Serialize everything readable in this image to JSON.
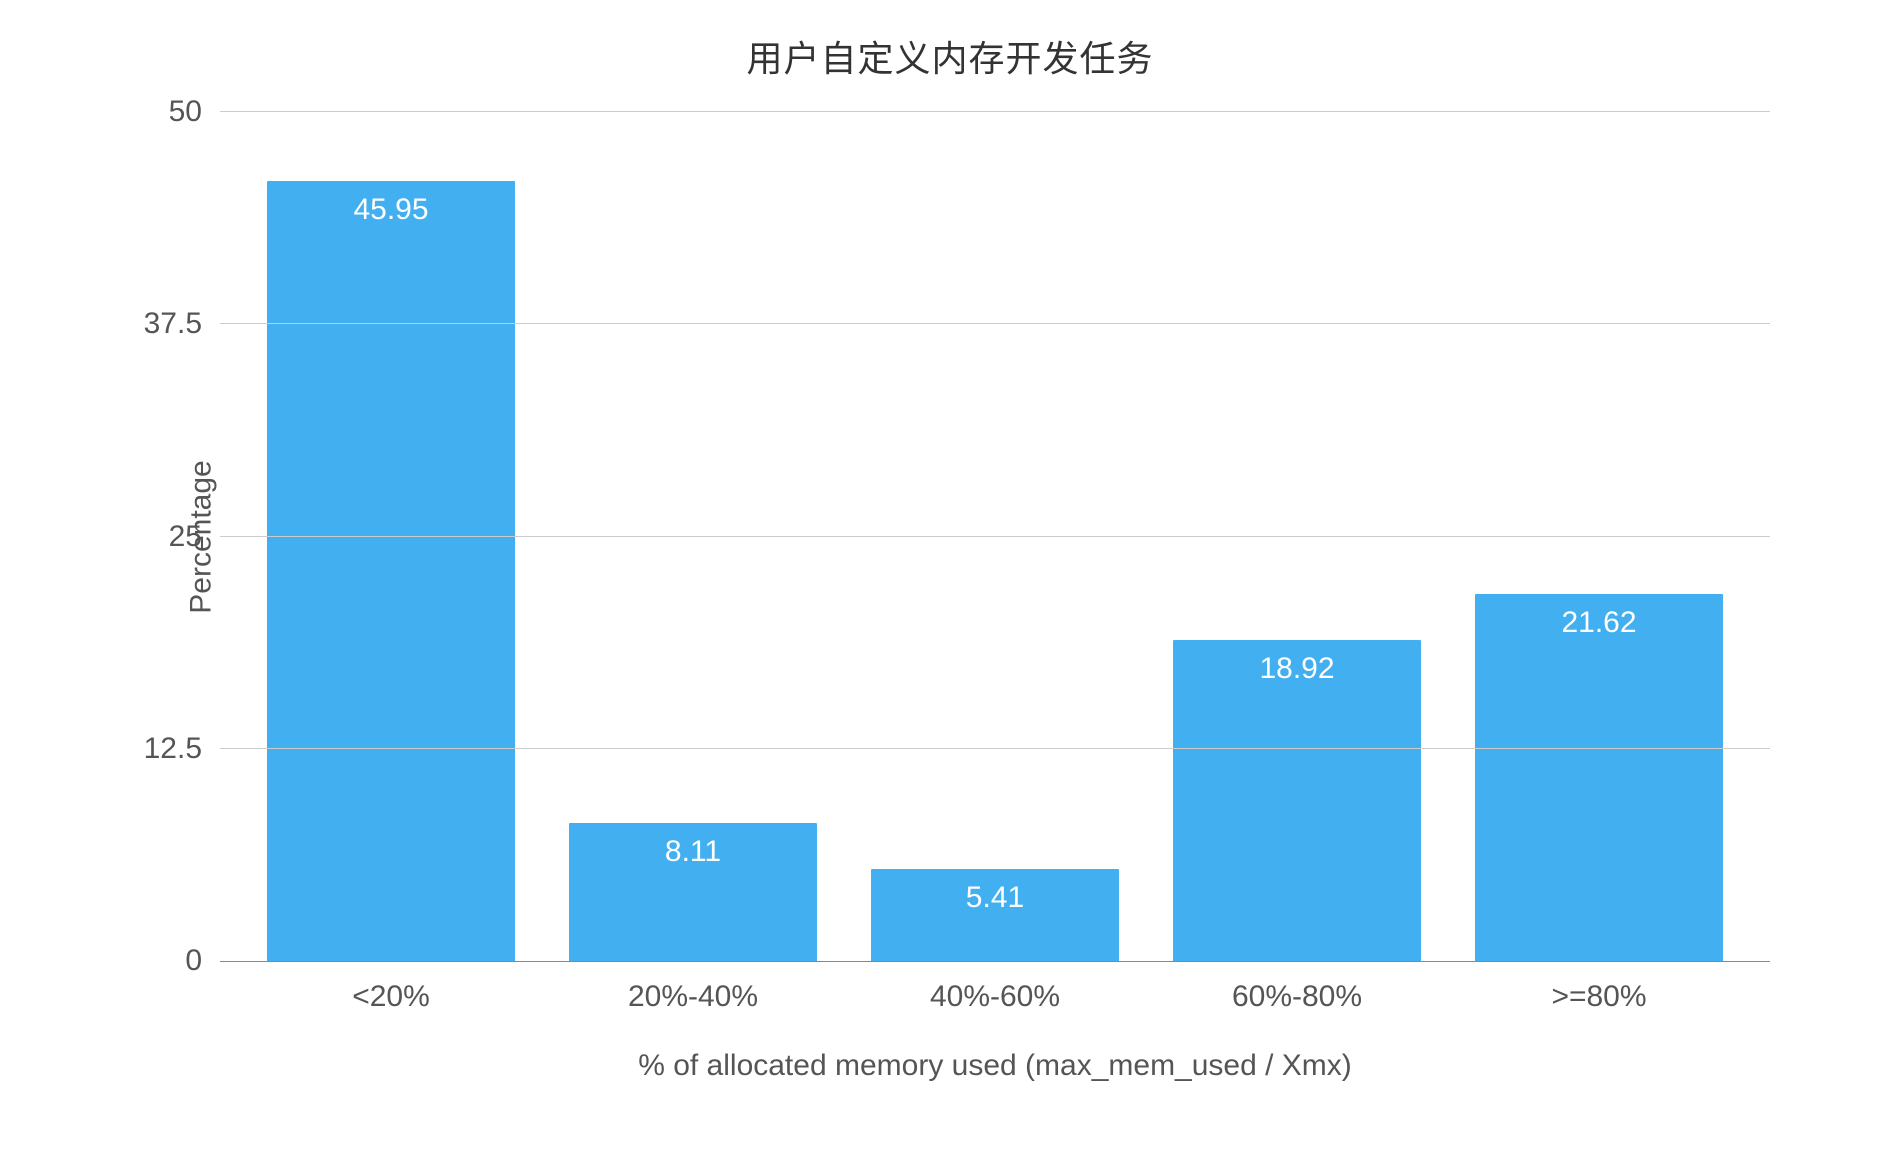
{
  "chart": {
    "type": "bar",
    "title": "用户自定义内存开发任务",
    "title_fontsize": 36,
    "title_color": "#333333",
    "xlabel": "% of allocated memory used (max_mem_used / Xmx)",
    "ylabel": "Percentage",
    "label_fontsize": 30,
    "label_color": "#555555",
    "categories": [
      "<20%",
      "20%-40%",
      "40%-60%",
      "60%-80%",
      ">=80%"
    ],
    "values": [
      45.95,
      8.11,
      5.41,
      18.92,
      21.62
    ],
    "bar_color": "#42aff0",
    "value_label_color": "#ffffff",
    "value_label_fontsize": 30,
    "ylim": [
      0,
      50
    ],
    "yticks": [
      0,
      12.5,
      25,
      37.5,
      50
    ],
    "ytick_labels": [
      "0",
      "12.5",
      "25",
      "37.5",
      "50"
    ],
    "tick_fontsize": 30,
    "tick_color": "#555555",
    "background_color": "#ffffff",
    "grid_color": "#cccccc",
    "axis_line_color": "#888888",
    "bar_width_ratio": 0.82
  }
}
